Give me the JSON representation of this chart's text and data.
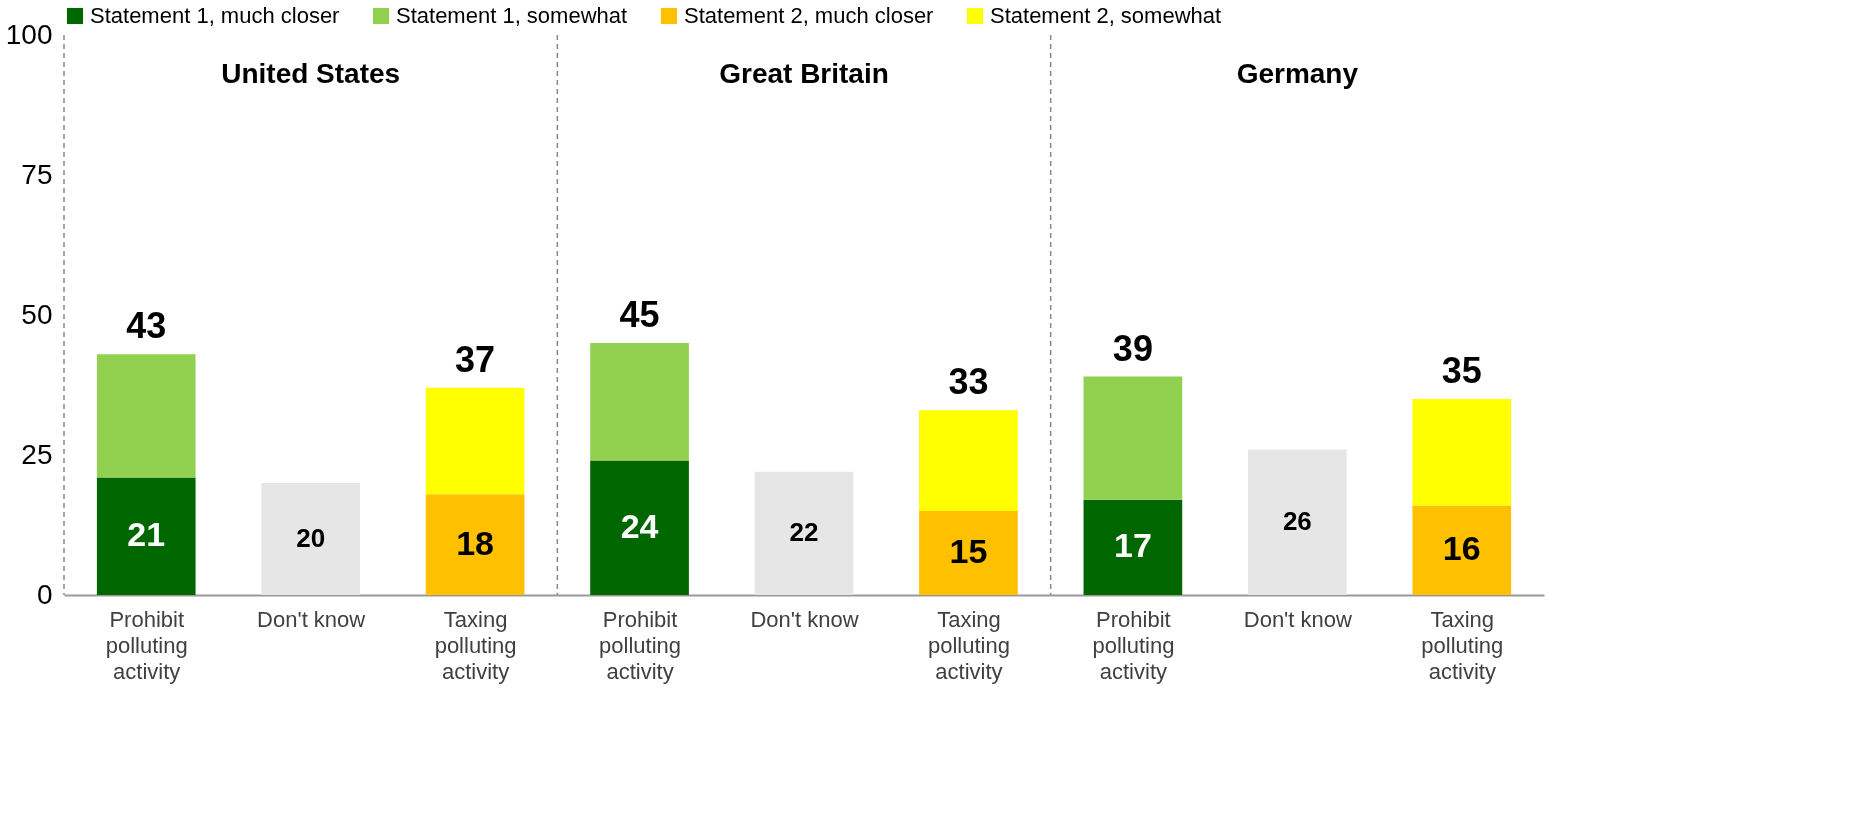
{
  "chart_data": {
    "type": "bar",
    "stacked": true,
    "categories": [
      "Prohibit polluting activity",
      "Don't know",
      "Taxing polluting activity",
      "Prohibit polluting activity",
      "Don't know",
      "Taxing polluting activity",
      "Prohibit polluting activity",
      "Don't know",
      "Taxing polluting activity"
    ],
    "series": [
      {
        "name": "Statement 1, much closer",
        "color": "#006600",
        "values": [
          21,
          null,
          null,
          24,
          null,
          null,
          17,
          null,
          null
        ],
        "value_labels": [
          "21",
          null,
          null,
          "24",
          null,
          null,
          "17",
          null,
          null
        ]
      },
      {
        "name": "Statement 1, somewhat",
        "color": "#92d050",
        "values": [
          22,
          null,
          null,
          21,
          null,
          null,
          22,
          null,
          null
        ]
      },
      {
        "name": "Statement 2, much closer",
        "color": "#ffc000",
        "values": [
          null,
          null,
          18,
          null,
          null,
          15,
          null,
          null,
          16
        ],
        "value_labels": [
          null,
          null,
          "18",
          null,
          null,
          "15",
          null,
          null,
          "16"
        ]
      },
      {
        "name": "Statement 2, somewhat",
        "color": "#ffff00",
        "values": [
          null,
          null,
          19,
          null,
          null,
          18,
          null,
          null,
          19
        ]
      },
      {
        "color": "#e6e6e6",
        "values": [
          null,
          20,
          null,
          null,
          22,
          null,
          null,
          26,
          null
        ],
        "value_labels": [
          null,
          "20",
          null,
          null,
          "22",
          null,
          null,
          "26",
          null
        ]
      }
    ],
    "totals": [
      "43",
      null,
      "37",
      "45",
      null,
      "33",
      "39",
      null,
      "35"
    ],
    "annotations": [
      "United States",
      "Great Britain",
      "Germany"
    ],
    "ylim": [
      0,
      100
    ],
    "yticks": [
      0,
      25,
      50,
      75,
      100
    ],
    "grid": false,
    "legend": "top"
  }
}
